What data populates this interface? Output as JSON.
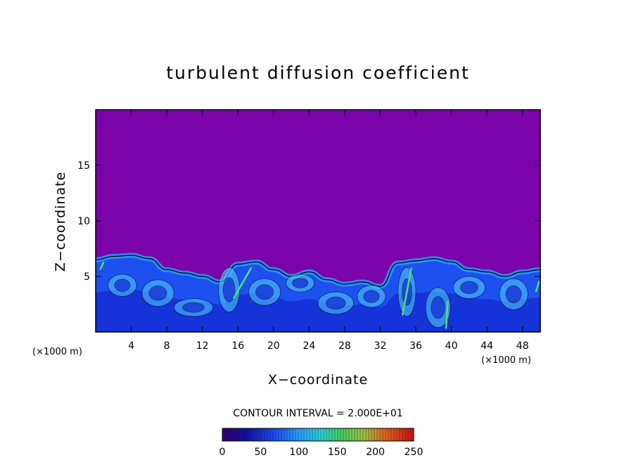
{
  "chart_data": {
    "type": "heatmap",
    "title": "turbulent diffusion coefficient",
    "xlabel": "X−coordinate",
    "ylabel": "Z−coordinate",
    "x_unit_label": "(×1000 m)",
    "y_unit_label": "(×1000 m)",
    "xlim": [
      0,
      50
    ],
    "ylim": [
      0,
      20
    ],
    "x_ticks": [
      4,
      8,
      12,
      16,
      20,
      24,
      28,
      32,
      36,
      40,
      44,
      48
    ],
    "y_ticks": [
      5,
      10,
      15
    ],
    "contour_interval_label": "CONTOUR INTERVAL = 2.000E+01",
    "colorbar": {
      "range": [
        0,
        250
      ],
      "ticks": [
        0,
        50,
        100,
        150,
        200,
        250
      ]
    },
    "background_value": 0,
    "turbulent_layer_top_profile": {
      "x": [
        0,
        2,
        4,
        6,
        8,
        10,
        12,
        14,
        16,
        18,
        20,
        22,
        24,
        26,
        28,
        30,
        32,
        34,
        36,
        38,
        40,
        42,
        44,
        46,
        48,
        50
      ],
      "z": [
        6.5,
        6.8,
        6.9,
        6.6,
        5.6,
        5.3,
        5.0,
        4.5,
        6.1,
        6.3,
        5.6,
        5.0,
        5.4,
        4.7,
        4.3,
        4.5,
        4.1,
        6.2,
        6.4,
        6.6,
        6.3,
        5.6,
        5.4,
        5.0,
        5.4,
        5.6
      ]
    }
  },
  "colors": {
    "background": "#7a03a9",
    "deep_blue": "#1428d2",
    "mid_blue": "#1e50f0",
    "cyan": "#28a0ff",
    "light_cyan": "#50d2ff",
    "green": "#46e66e"
  }
}
